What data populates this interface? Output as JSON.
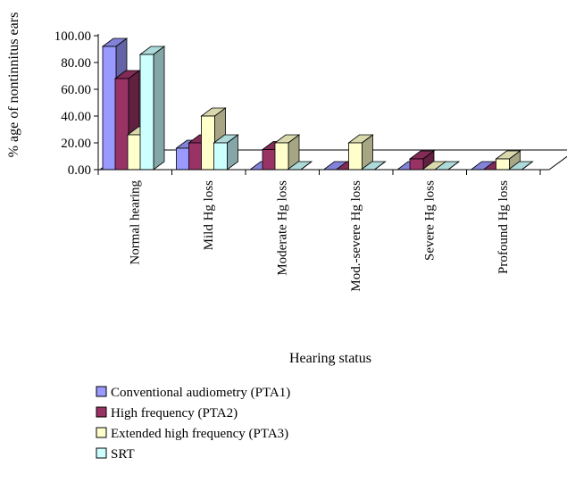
{
  "chart_data": {
    "type": "bar",
    "subtype": "3d-clustered-column",
    "ylabel": "% age of nontinnitus ears",
    "xlabel": "Hearing status",
    "ylim": [
      0,
      100
    ],
    "ytick_labels": [
      "0.00",
      "20.00",
      "40.00",
      "60.00",
      "80.00",
      "100.00"
    ],
    "categories": [
      "Normal hearing",
      "Mild Hg loss",
      "Moderate Hg loss",
      "Mod.-severe Hg loss",
      "Severe Hg loss",
      "Profound Hg loss"
    ],
    "series": [
      {
        "name": "Conventional audiometry (PTA1)",
        "color": "#9999ff",
        "values": [
          92,
          16,
          0,
          0,
          0,
          0
        ]
      },
      {
        "name": "High frequency (PTA2)",
        "color": "#993366",
        "values": [
          68,
          20,
          15,
          0,
          8,
          0
        ]
      },
      {
        "name": "Extended high frequency (PTA3)",
        "color": "#ffffcc",
        "values": [
          26,
          40,
          20,
          20,
          0,
          8
        ]
      },
      {
        "name": "SRT",
        "color": "#ccffff",
        "values": [
          86,
          20,
          0,
          0,
          0,
          0
        ]
      }
    ],
    "legend_position": "bottom-left",
    "grid": false
  }
}
